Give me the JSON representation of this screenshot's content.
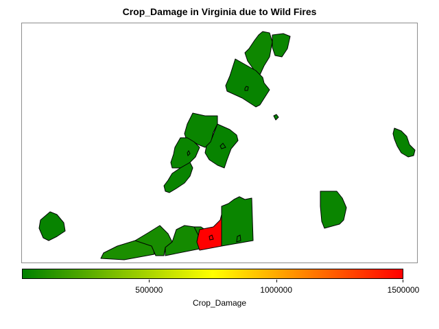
{
  "chart_data": {
    "type": "choropleth",
    "title": "Crop_Damage in Virginia due to Wild Fires",
    "legend": {
      "title": "Crop_Damage",
      "min": 0,
      "max": 1500000,
      "ticks": [
        500000,
        1000000,
        1500000
      ],
      "tick_labels": [
        "500000",
        "1000000",
        "1500000"
      ],
      "color_stops": [
        "#008000",
        "#ffff00",
        "#ff0000"
      ],
      "position": "bottom"
    },
    "regions": [
      {
        "id": "north-1",
        "value": 40000
      },
      {
        "id": "north-2",
        "value": 30000
      },
      {
        "id": "north-3",
        "value": 20000
      },
      {
        "id": "speck",
        "value": 10000
      },
      {
        "id": "valley-1",
        "value": 30000
      },
      {
        "id": "valley-2",
        "value": 20000
      },
      {
        "id": "valley-3",
        "value": 30000
      },
      {
        "id": "valley-4",
        "value": 25000
      },
      {
        "id": "east-1",
        "value": 20000
      },
      {
        "id": "east-2",
        "value": 30000
      },
      {
        "id": "southwest-1",
        "value": 20000
      },
      {
        "id": "south-1",
        "value": 80000
      },
      {
        "id": "south-2",
        "value": 70000
      },
      {
        "id": "south-3",
        "value": 60000
      },
      {
        "id": "south-4",
        "value": 50000
      },
      {
        "id": "south-5",
        "value": 1500000
      },
      {
        "id": "south-6",
        "value": 30000
      }
    ]
  }
}
